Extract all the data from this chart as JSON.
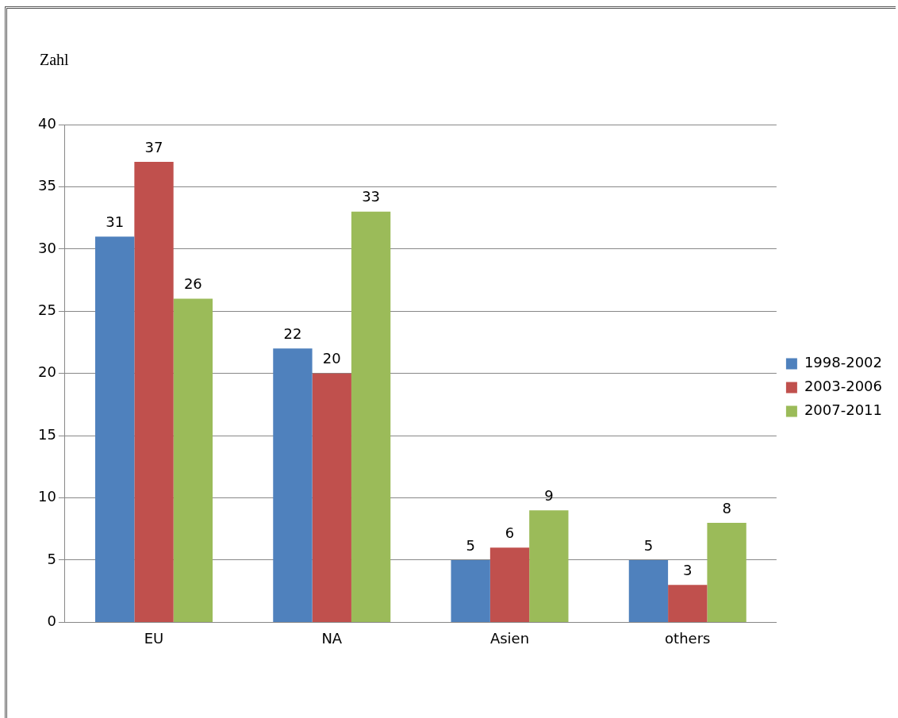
{
  "chart_data": {
    "type": "bar",
    "ylabel": "Zahl",
    "categories": [
      "EU",
      "NA",
      "Asien",
      "others"
    ],
    "series": [
      {
        "name": "1998-2002",
        "color": "#4f81bd",
        "values": [
          31,
          22,
          5,
          5
        ]
      },
      {
        "name": "2003-2006",
        "color": "#c0504d",
        "values": [
          37,
          20,
          6,
          3
        ]
      },
      {
        "name": "2007-2011",
        "color": "#9bbb59",
        "values": [
          26,
          33,
          9,
          8
        ]
      }
    ],
    "ylim": [
      0,
      40
    ],
    "yticks": [
      0,
      5,
      10,
      15,
      20,
      25,
      30,
      35,
      40
    ],
    "grid": "y",
    "legend": "right",
    "data_labels": true
  }
}
